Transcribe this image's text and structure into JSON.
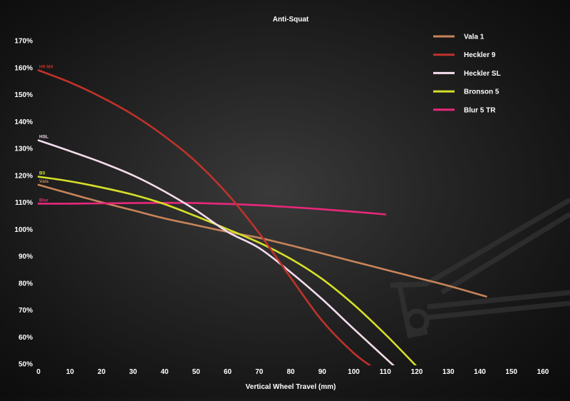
{
  "chart_data": {
    "type": "line",
    "title": "Anti-Squat",
    "xlabel": "Vertical Wheel Travel (mm)",
    "ylabel": "",
    "xlim": [
      0,
      160
    ],
    "ylim": [
      50,
      170
    ],
    "x_ticks": [
      0,
      10,
      20,
      30,
      40,
      50,
      60,
      70,
      80,
      90,
      100,
      110,
      120,
      130,
      140,
      150,
      160
    ],
    "y_ticks": [
      50,
      60,
      70,
      80,
      90,
      100,
      110,
      120,
      130,
      140,
      150,
      160,
      170
    ],
    "y_tick_labels": [
      "50%",
      "60%",
      "70%",
      "80%",
      "90%",
      "100%",
      "110%",
      "120%",
      "130%",
      "140%",
      "150%",
      "160%",
      "170%"
    ],
    "grid": false,
    "legend_position": "top-right",
    "series": [
      {
        "name": "Vala 1",
        "tag": "Vala",
        "color": "#c8845a",
        "x": [
          0,
          10,
          20,
          30,
          40,
          50,
          60,
          70,
          80,
          90,
          100,
          110,
          120,
          130,
          142
        ],
        "y": [
          116.5,
          113.2,
          110,
          107,
          104,
          101.5,
          99,
          96.8,
          94,
          91,
          88,
          85,
          82,
          79,
          75
        ]
      },
      {
        "name": "Heckler 9",
        "tag": "H9 MX",
        "color": "#c0322b",
        "x": [
          0,
          10,
          20,
          30,
          40,
          50,
          60,
          70,
          80,
          90,
          100,
          107
        ],
        "y": [
          159,
          154.5,
          149,
          142.5,
          134.5,
          125,
          113,
          98.5,
          82,
          66,
          54,
          48
        ]
      },
      {
        "name": "Heckler SL",
        "tag": "HSL",
        "color": "#f4dcec",
        "x": [
          0,
          10,
          20,
          30,
          40,
          50,
          60,
          70,
          80,
          90,
          100,
          113
        ],
        "y": [
          133,
          129,
          124.8,
          120,
          114,
          107,
          99,
          93,
          84,
          74,
          63,
          49
        ]
      },
      {
        "name": "Bronson 5",
        "tag": "B5",
        "color": "#d6e02a",
        "x": [
          0,
          10,
          20,
          30,
          40,
          50,
          60,
          70,
          80,
          90,
          100,
          110,
          120
        ],
        "y": [
          119.5,
          117.8,
          115.5,
          112.8,
          109.3,
          104.8,
          100,
          95,
          89,
          81.5,
          72,
          61,
          49
        ]
      },
      {
        "name": "Blur 5 TR",
        "tag": "Blur",
        "color": "#e8287a",
        "x": [
          0,
          10,
          20,
          30,
          40,
          50,
          60,
          70,
          80,
          90,
          100,
          110
        ],
        "y": [
          109.5,
          109.5,
          109.6,
          109.7,
          109.8,
          109.7,
          109.4,
          108.9,
          108.2,
          107.4,
          106.5,
          105.5
        ]
      }
    ]
  }
}
